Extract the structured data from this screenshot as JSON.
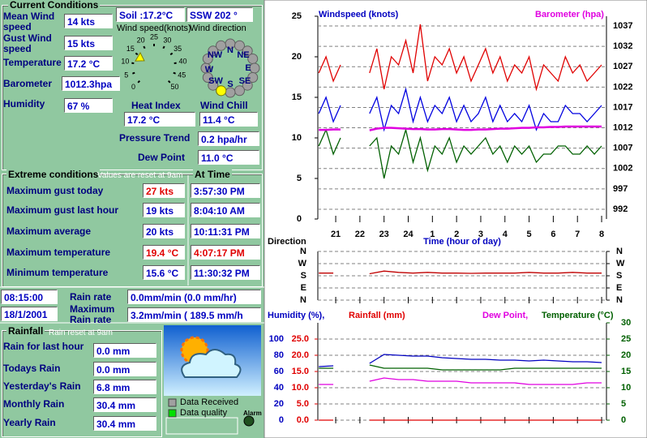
{
  "current": {
    "title": "Current Conditions",
    "mean_wind": {
      "label": "Mean Wind speed",
      "value": "14 kts"
    },
    "gust": {
      "label": "Gust Wind speed",
      "value": "15 kts"
    },
    "temperature": {
      "label": "Temperature",
      "value": "17.2 °C"
    },
    "barometer": {
      "label": "Barometer",
      "value": "1012.3hpa"
    },
    "humidity": {
      "label": "Humidity",
      "value": "67 %"
    },
    "soil": "Soil :17.2°C",
    "direction": "SSW  202 °",
    "heat_index": {
      "label": "Heat Index",
      "value": "17.2 °C"
    },
    "wind_chill": {
      "label": "Wind Chill",
      "value": "11.4 °C"
    },
    "pressure_trend": {
      "label": "Pressure Trend",
      "value": "0.2 hpa/hr"
    },
    "dew_point": {
      "label": "Dew Point",
      "value": "11.0 °C"
    }
  },
  "gauge": {
    "title": "Wind speed(knots)",
    "ticks": [
      0,
      5,
      10,
      15,
      20,
      25,
      30,
      35,
      40,
      45,
      50
    ],
    "value": 14
  },
  "compass": {
    "title": "Wind direction",
    "labels": [
      "NW",
      "N",
      "NE",
      "W",
      "E",
      "SW",
      "S",
      "SE"
    ],
    "bearing": 202
  },
  "extremes": {
    "title": "Extreme conditions",
    "note": "Values are reset at 9am",
    "time_title": "At Time",
    "rows": [
      {
        "label": "Maximum gust today",
        "value": "27 kts",
        "time": "3:57:30 PM"
      },
      {
        "label": "Maximum gust last hour",
        "value": "19 kts",
        "time": "8:04:10 AM"
      },
      {
        "label": "Maximum average",
        "value": "20 kts",
        "time": "10:11:31 PM"
      },
      {
        "label": "Maximum temperature",
        "value": "19.4 °C",
        "time": "4:07:17 PM"
      },
      {
        "label": "Minimum temperature",
        "value": "15.6 °C",
        "time": "11:30:32 PM"
      }
    ]
  },
  "clock": {
    "time": "08:15:00",
    "date": "18/1/2001"
  },
  "rain_rate": {
    "label": "Rain rate",
    "value": "0.0mm/min (0.0 mm/hr)"
  },
  "max_rain_rate": {
    "label": "Maximum Rain rate",
    "value": "3.2mm/min ( 189.5 mm/h"
  },
  "rainfall": {
    "title": "Rainfall",
    "note": "Rain reset at 9am",
    "rows": [
      {
        "label": "Rain for last hour",
        "value": "0.0 mm"
      },
      {
        "label": "Todays Rain",
        "value": "0.0 mm"
      },
      {
        "label": "Yesterday's Rain",
        "value": "6.8 mm"
      },
      {
        "label": "Monthly Rain",
        "value": "30.4 mm"
      },
      {
        "label": "Yearly Rain",
        "value": "30.4 mm"
      }
    ]
  },
  "status": {
    "data_received": "Data Received",
    "data_quality": "Data quality",
    "alarm": "Alarm"
  },
  "charts": [
    {
      "type": "line",
      "title": "Windspeed (knots)",
      "title2": "Barometer (hpa)",
      "xlabel": "Time (hour of day)",
      "xlim": [
        20.26,
        32.2
      ],
      "xticks": [
        21,
        22,
        23,
        24,
        {
          "value": 25,
          "label": "1"
        },
        {
          "value": 26,
          "label": "2"
        },
        {
          "value": 27,
          "label": "3"
        },
        {
          "value": 28,
          "label": "4"
        },
        {
          "value": 29,
          "label": "5"
        },
        {
          "value": 30,
          "label": "6"
        },
        {
          "value": 31,
          "label": "7"
        },
        {
          "value": 32,
          "label": "8"
        }
      ],
      "ylim": [
        0,
        25
      ],
      "yticks": [
        0,
        5,
        10,
        15,
        20,
        25
      ],
      "y2lim": [
        989.6,
        1039.4
      ],
      "y2ticks": [
        992,
        997,
        1002,
        1007,
        1012,
        1017,
        1022,
        1027,
        1032,
        1037
      ],
      "grid": true,
      "x": [
        20.3,
        20.6,
        20.9,
        21.2,
        21.5,
        21.8,
        22.1,
        22.4,
        22.7,
        23.0,
        23.3,
        23.6,
        23.9,
        24.2,
        24.5,
        24.8,
        25.1,
        25.4,
        25.7,
        26.0,
        26.3,
        26.6,
        26.9,
        27.2,
        27.5,
        27.8,
        28.1,
        28.4,
        28.7,
        29.0,
        29.3,
        29.6,
        29.9,
        30.2,
        30.5,
        30.8,
        31.1,
        31.4,
        31.7,
        32.0
      ],
      "series": [
        {
          "color": "#e00000",
          "values": [
            18,
            20,
            17,
            19,
            null,
            null,
            null,
            18,
            21,
            16,
            20,
            19,
            22,
            18,
            24,
            17,
            20,
            19,
            21,
            18,
            20,
            17,
            19,
            21,
            18,
            20,
            17,
            19,
            18,
            20,
            16,
            19,
            18,
            17,
            20,
            18,
            19,
            17,
            18,
            19
          ]
        },
        {
          "color": "#0000e0",
          "values": [
            13,
            15,
            12,
            14,
            null,
            null,
            null,
            13,
            15,
            11,
            14,
            13,
            16,
            12,
            15,
            12,
            14,
            13,
            15,
            12,
            14,
            12,
            13,
            15,
            12,
            14,
            12,
            13,
            12,
            14,
            11,
            13,
            12,
            12,
            14,
            13,
            13,
            12,
            13,
            14
          ]
        },
        {
          "color": "#006000",
          "values": [
            9,
            11,
            8,
            10,
            null,
            null,
            null,
            9,
            10,
            5,
            9,
            8,
            11,
            7,
            10,
            6,
            9,
            8,
            10,
            7,
            9,
            8,
            9,
            10,
            8,
            9,
            7,
            9,
            8,
            9,
            7,
            8,
            8,
            9,
            9,
            8,
            8,
            9,
            8,
            9
          ]
        },
        {
          "color": "#e000e0",
          "axis": "y2",
          "values": [
            1011.5,
            1011.5,
            1011.6,
            1011.6,
            null,
            null,
            null,
            1011.4,
            1011.8,
            1012.0,
            1012.0,
            1011.9,
            1011.8,
            1011.7,
            1011.7,
            1011.6,
            1011.6,
            1011.7,
            1011.7,
            1011.6,
            1011.5,
            1011.5,
            1011.6,
            1011.6,
            1011.7,
            1011.8,
            1011.8,
            1011.9,
            1012.0,
            1012.0,
            1012.1,
            1012.1,
            1012.2,
            1012.2,
            1012.3,
            1012.3,
            1012.3,
            1012.3,
            1012.3,
            1012.3
          ]
        }
      ]
    },
    {
      "type": "line",
      "title": "Direction",
      "xlim": [
        20.26,
        32.2
      ],
      "ylim": [
        0,
        360
      ],
      "yticks": [
        {
          "value": 360,
          "label": "N"
        },
        {
          "value": 270,
          "label": "W"
        },
        {
          "value": 180,
          "label": "S"
        },
        {
          "value": 90,
          "label": "E"
        },
        {
          "value": 0,
          "label": "N"
        }
      ],
      "grid": true,
      "x": [
        20.3,
        20.9,
        21.5,
        22.4,
        23.0,
        23.6,
        24.2,
        24.8,
        25.4,
        26.0,
        26.6,
        27.2,
        27.8,
        28.4,
        29.0,
        29.6,
        30.2,
        30.8,
        31.4,
        32.0
      ],
      "series": [
        {
          "color": "#c00000",
          "values": [
            200,
            200,
            null,
            195,
            215,
            205,
            200,
            205,
            200,
            200,
            198,
            200,
            200,
            200,
            205,
            200,
            200,
            205,
            200,
            200
          ]
        }
      ]
    },
    {
      "type": "line",
      "title": "Humidity (%),",
      "title2": "Rainfall (mm)",
      "title3": "Dew Point,",
      "title4": "Temperature (°C)",
      "xlim": [
        20.26,
        32.2
      ],
      "ylim": [
        0,
        120
      ],
      "yticks": [
        0,
        20,
        40,
        60,
        80,
        100
      ],
      "y3lim": [
        0,
        30
      ],
      "y3ticks": [
        {
          "value": 0,
          "label": "0.0"
        },
        {
          "value": 5,
          "label": "5.0"
        },
        {
          "value": 10,
          "label": "10.0"
        },
        {
          "value": 15,
          "label": "15.0"
        },
        {
          "value": 20,
          "label": "20.0"
        },
        {
          "value": 25,
          "label": "25.0"
        }
      ],
      "y2lim": [
        0,
        30
      ],
      "y2ticks": [
        0,
        5,
        10,
        15,
        20,
        25,
        30
      ],
      "grid": true,
      "x": [
        20.3,
        20.9,
        21.5,
        22.4,
        23.0,
        23.6,
        24.2,
        24.8,
        25.4,
        26.0,
        26.6,
        27.2,
        27.8,
        28.4,
        29.0,
        29.6,
        30.2,
        30.8,
        31.4,
        32.0
      ],
      "series": [
        {
          "name": "Humidity",
          "color": "#0000c0",
          "values": [
            66,
            67,
            null,
            70,
            81,
            80,
            79,
            79,
            77,
            76,
            75,
            75,
            74,
            74,
            73,
            74,
            73,
            72,
            72,
            71
          ]
        },
        {
          "name": "Rainfall",
          "color": "#e00000",
          "axis": "y3",
          "values": [
            0,
            0,
            null,
            0,
            0,
            0,
            0,
            0,
            0,
            0,
            0,
            0,
            0,
            0,
            0,
            0,
            0,
            0,
            0,
            0
          ]
        },
        {
          "name": "Dew Point",
          "color": "#e000e0",
          "axis": "y2",
          "values": [
            11,
            11,
            null,
            12,
            13,
            12.5,
            12.5,
            12,
            12,
            12,
            11.5,
            11.5,
            11.5,
            11.5,
            11,
            11,
            11,
            11,
            11.5,
            11.5
          ]
        },
        {
          "name": "Temperature",
          "color": "#006000",
          "axis": "y2",
          "values": [
            16,
            16,
            null,
            17,
            16,
            16,
            16,
            16,
            15.5,
            15.5,
            15.5,
            15.5,
            15.5,
            16,
            16,
            16,
            16,
            16,
            16,
            16
          ]
        }
      ]
    }
  ]
}
